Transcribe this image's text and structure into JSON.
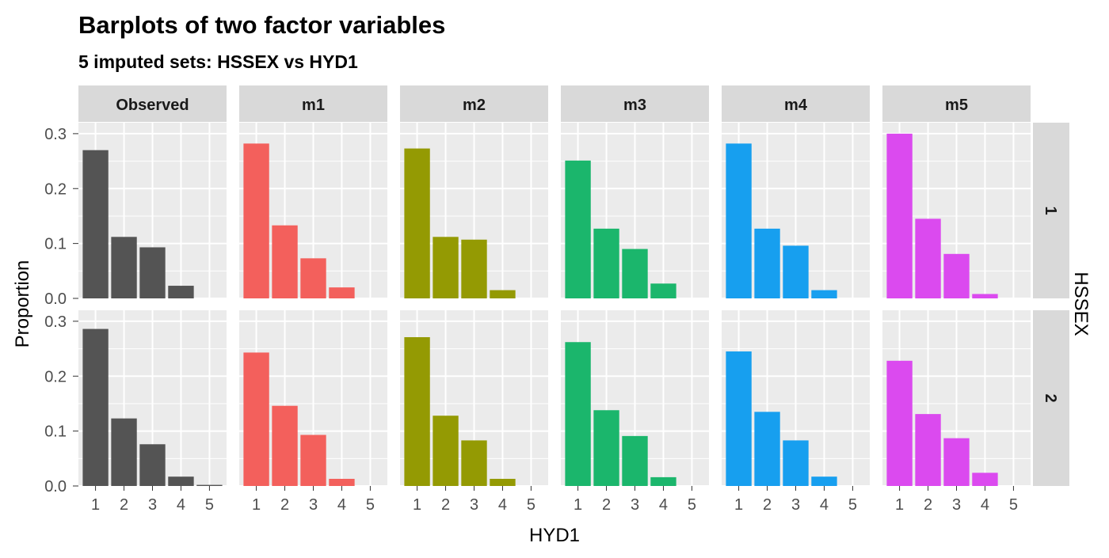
{
  "chart_data": {
    "type": "bar",
    "title": "Barplots of two factor variables",
    "subtitle": "5  imputed sets:  HSSEX vs HYD1",
    "xlabel": "HYD1",
    "ylabel": "Proportion",
    "facet_row_label": "HSSEX",
    "categories": [
      "1",
      "2",
      "3",
      "4",
      "5"
    ],
    "ylim": [
      0,
      0.32
    ],
    "yticks": [
      0.0,
      0.1,
      0.2,
      0.3
    ],
    "ytick_labels": [
      "0.0",
      "0.1",
      "0.2",
      "0.3"
    ],
    "grid": true,
    "columns": [
      {
        "name": "Observed",
        "color": "#545454"
      },
      {
        "name": "m1",
        "color": "#F3605C"
      },
      {
        "name": "m2",
        "color": "#949A03"
      },
      {
        "name": "m3",
        "color": "#1BB66C"
      },
      {
        "name": "m4",
        "color": "#179FEF"
      },
      {
        "name": "m5",
        "color": "#DB4AEF"
      }
    ],
    "rows": [
      {
        "name": "1",
        "series": [
          {
            "name": "Observed",
            "values": [
              0.27,
              0.112,
              0.093,
              0.023,
              0.0
            ]
          },
          {
            "name": "m1",
            "values": [
              0.282,
              0.133,
              0.073,
              0.02,
              0.0
            ]
          },
          {
            "name": "m2",
            "values": [
              0.273,
              0.112,
              0.107,
              0.015,
              0.0
            ]
          },
          {
            "name": "m3",
            "values": [
              0.251,
              0.127,
              0.09,
              0.027,
              0.0
            ]
          },
          {
            "name": "m4",
            "values": [
              0.282,
              0.127,
              0.096,
              0.015,
              0.0
            ]
          },
          {
            "name": "m5",
            "values": [
              0.3,
              0.145,
              0.081,
              0.008,
              0.0
            ]
          }
        ]
      },
      {
        "name": "2",
        "series": [
          {
            "name": "Observed",
            "values": [
              0.286,
              0.123,
              0.076,
              0.017,
              0.002
            ]
          },
          {
            "name": "m1",
            "values": [
              0.243,
              0.146,
              0.093,
              0.013,
              0.0
            ]
          },
          {
            "name": "m2",
            "values": [
              0.271,
              0.128,
              0.083,
              0.013,
              0.0
            ]
          },
          {
            "name": "m3",
            "values": [
              0.262,
              0.138,
              0.091,
              0.016,
              0.0
            ]
          },
          {
            "name": "m4",
            "values": [
              0.245,
              0.135,
              0.083,
              0.017,
              0.0
            ]
          },
          {
            "name": "m5",
            "values": [
              0.228,
              0.131,
              0.087,
              0.024,
              0.0
            ]
          }
        ]
      }
    ]
  }
}
